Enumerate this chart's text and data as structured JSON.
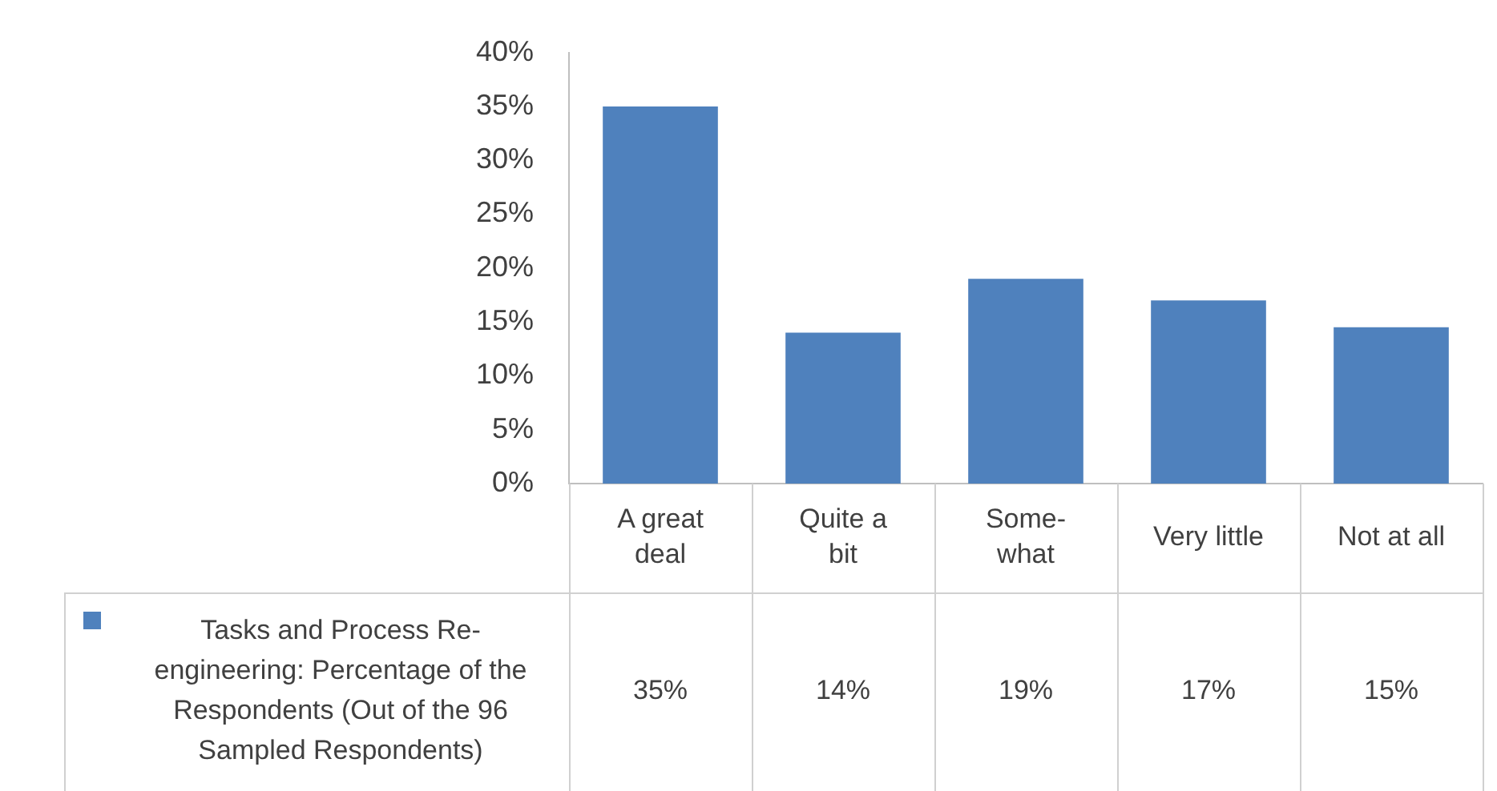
{
  "chart_data": {
    "type": "bar",
    "categories": [
      "A great deal",
      "Quite a bit",
      "Some-what",
      "Very little",
      "Not at all"
    ],
    "series": [
      {
        "name": "Tasks and Process Re-engineering: Percentage of the Respondents (Out of the 96 Sampled Respondents)",
        "color": "#4f81bd",
        "values": [
          35,
          14,
          19,
          17,
          14.5
        ],
        "value_labels": [
          "35%",
          "14%",
          "19%",
          "17%",
          "15%"
        ]
      }
    ],
    "ylim": [
      0,
      40
    ],
    "yticks": [
      {
        "value": 0,
        "label": "0%"
      },
      {
        "value": 5,
        "label": "5%"
      },
      {
        "value": 10,
        "label": "10%"
      },
      {
        "value": 15,
        "label": "15%"
      },
      {
        "value": 20,
        "label": "20%"
      },
      {
        "value": 25,
        "label": "25%"
      },
      {
        "value": 30,
        "label": "30%"
      },
      {
        "value": 35,
        "label": "35%"
      },
      {
        "value": 40,
        "label": "40%"
      }
    ],
    "grid": false,
    "legend": "bottom"
  }
}
